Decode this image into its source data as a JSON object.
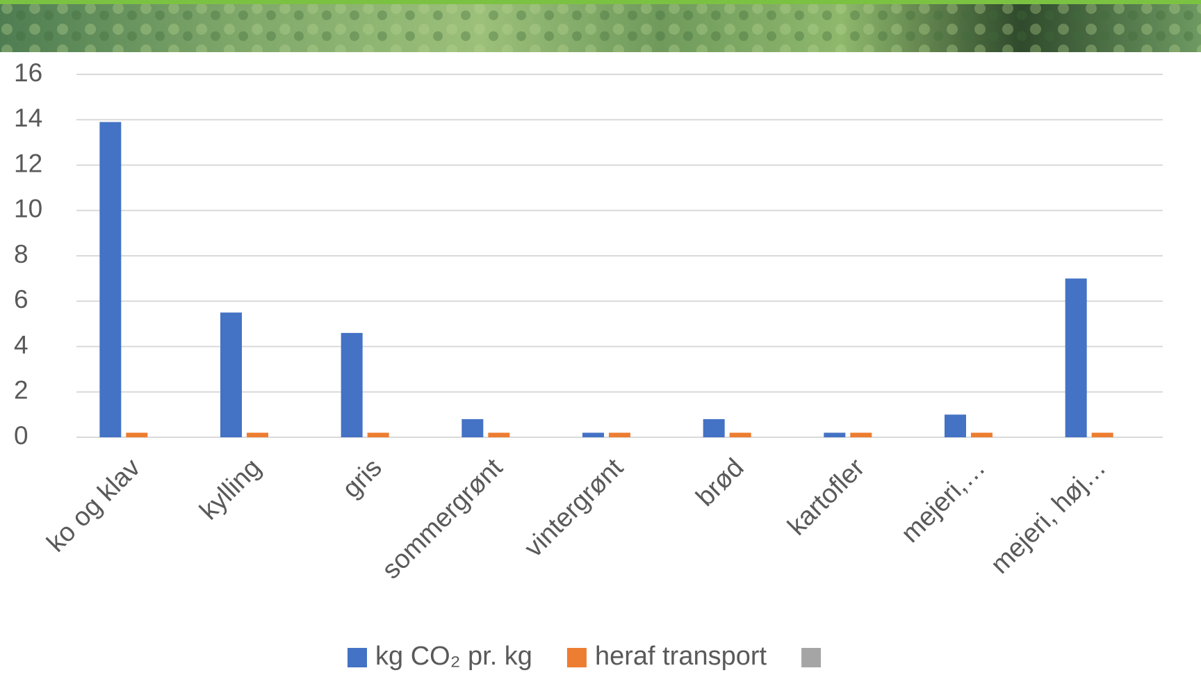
{
  "chart_data": {
    "type": "bar",
    "categories": [
      "ko og klav",
      "kylling",
      "gris",
      "sommergrønt",
      "vintergrønt",
      "brød",
      "kartofler",
      "mejeri,…",
      "mejeri, høj…"
    ],
    "series": [
      {
        "name": "kg CO₂ pr. kg",
        "color": "#4472c4",
        "values": [
          13.9,
          5.5,
          4.6,
          0.8,
          0.2,
          0.8,
          0.2,
          1.0,
          7.0
        ]
      },
      {
        "name": "heraf transport",
        "color": "#ed7d31",
        "values": [
          0.2,
          0.2,
          0.2,
          0.2,
          0.2,
          0.2,
          0.2,
          0.2,
          0.2
        ]
      },
      {
        "name": null,
        "color": "#a5a5a5",
        "values": [
          null,
          null,
          null,
          null,
          null,
          null,
          null,
          null,
          null
        ]
      }
    ],
    "ylim": [
      0,
      16
    ],
    "yticks": [
      0,
      2,
      4,
      6,
      8,
      10,
      12,
      14,
      16
    ],
    "grid": true,
    "legend": "bottom"
  }
}
